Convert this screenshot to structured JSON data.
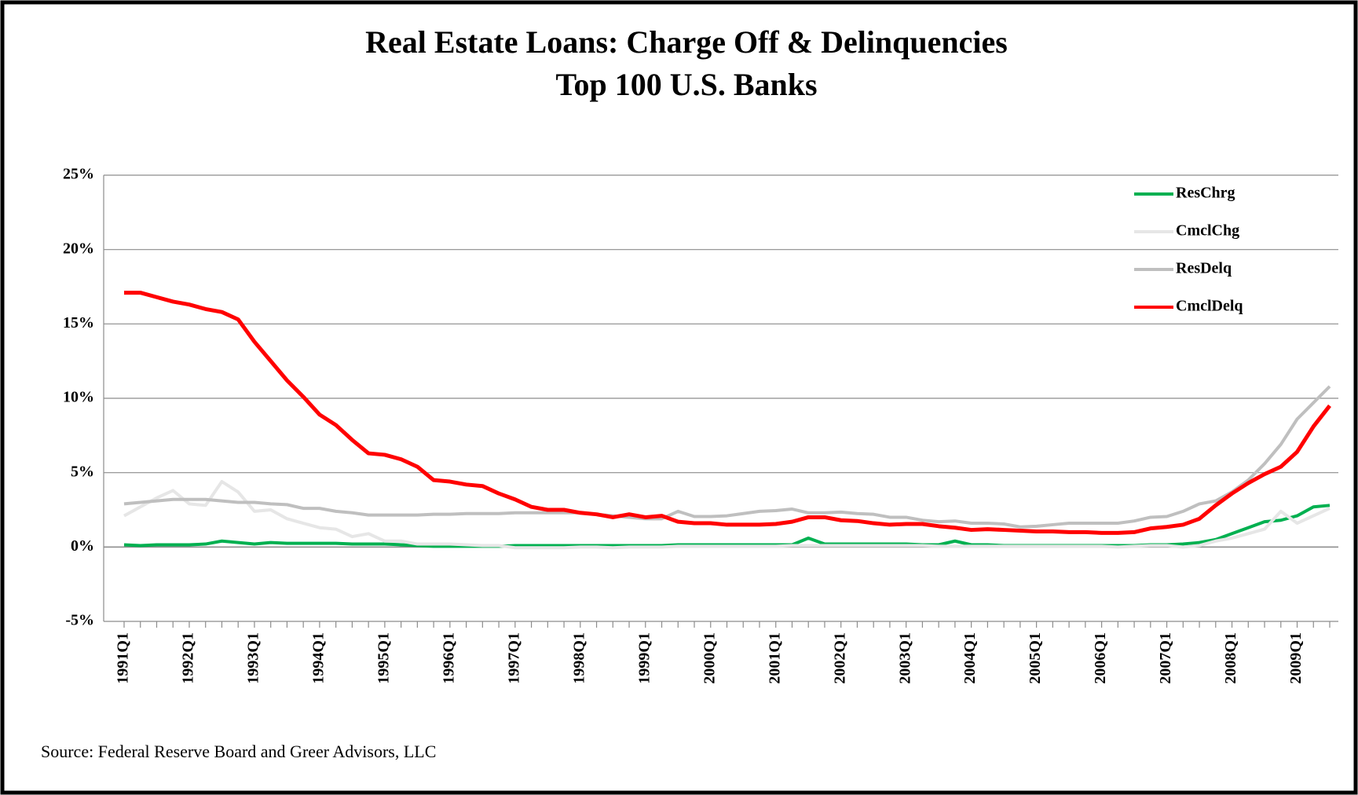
{
  "chart_data": {
    "type": "line",
    "title": "Real Estate Loans: Charge Off & Delinquencies",
    "subtitle": "Top 100 U.S. Banks",
    "source": "Source: Federal Reserve Board and Greer Advisors, LLC",
    "categories": [
      "1991Q1",
      null,
      null,
      null,
      "1992Q1",
      null,
      null,
      null,
      "1993Q1",
      null,
      null,
      null,
      "1994Q1",
      null,
      null,
      null,
      "1995Q1",
      null,
      null,
      null,
      "1996Q1",
      null,
      null,
      null,
      "1997Q1",
      null,
      null,
      null,
      "1998Q1",
      null,
      null,
      null,
      "1999Q1",
      null,
      null,
      null,
      "2000Q1",
      null,
      null,
      null,
      "2001Q1",
      null,
      null,
      null,
      "2002Q1",
      null,
      null,
      null,
      "2003Q1",
      null,
      null,
      null,
      "2004Q1",
      null,
      null,
      null,
      "2005Q1",
      null,
      null,
      null,
      "2006Q1",
      null,
      null,
      null,
      "2007Q1",
      null,
      null,
      null,
      "2008Q1",
      null,
      null,
      null,
      "2009Q1",
      null,
      null
    ],
    "ylim": [
      -5,
      25
    ],
    "yticks": [
      {
        "value": -5,
        "label": "-5%"
      },
      {
        "value": 0,
        "label": "0%"
      },
      {
        "value": 5,
        "label": "5%"
      },
      {
        "value": 10,
        "label": "10%"
      },
      {
        "value": 15,
        "label": "15%"
      },
      {
        "value": 20,
        "label": "20%"
      },
      {
        "value": 25,
        "label": "25%"
      }
    ],
    "grid": true,
    "legend": "upper-right",
    "series": [
      {
        "name": "ResChrg",
        "color": "#00b050",
        "values": [
          0.15,
          0.1,
          0.15,
          0.15,
          0.15,
          0.2,
          0.4,
          0.3,
          0.2,
          0.3,
          0.25,
          0.25,
          0.25,
          0.25,
          0.2,
          0.2,
          0.2,
          0.15,
          0.1,
          0.05,
          0.05,
          0.05,
          0.05,
          0.05,
          0.1,
          0.1,
          0.1,
          0.1,
          0.1,
          0.1,
          0.1,
          0.1,
          0.1,
          0.1,
          0.15,
          0.15,
          0.15,
          0.15,
          0.15,
          0.15,
          0.15,
          0.15,
          0.6,
          0.2,
          0.2,
          0.2,
          0.2,
          0.2,
          0.2,
          0.15,
          0.15,
          0.4,
          0.15,
          0.15,
          0.1,
          0.1,
          0.1,
          0.1,
          0.1,
          0.1,
          0.1,
          0.1,
          0.1,
          0.15,
          0.15,
          0.2,
          0.3,
          0.5,
          0.9,
          1.3,
          1.7,
          1.8,
          2.1,
          2.7,
          2.8
        ]
      },
      {
        "name": "CmclChg",
        "color": "#e6e6e6",
        "values": [
          2.1,
          2.7,
          3.3,
          3.8,
          2.9,
          2.8,
          4.4,
          3.7,
          2.4,
          2.5,
          1.9,
          1.6,
          1.3,
          1.2,
          0.7,
          0.9,
          0.4,
          0.4,
          0.2,
          0.2,
          0.2,
          0.15,
          0.1,
          0.1,
          -0.05,
          -0.05,
          -0.05,
          -0.05,
          0,
          0,
          -0.05,
          0,
          0,
          0,
          0.05,
          0.05,
          0.05,
          0.05,
          0.05,
          0.05,
          0.05,
          0.1,
          0.1,
          0.1,
          0.1,
          0.1,
          0.1,
          0.1,
          0.1,
          0.1,
          0.05,
          0.05,
          0.05,
          0.05,
          0.05,
          0.05,
          0.05,
          0.05,
          0.05,
          0.05,
          0.05,
          0,
          0.05,
          0.1,
          0.1,
          0,
          0.1,
          0.4,
          0.6,
          0.9,
          1.2,
          2.4,
          1.6,
          2.1,
          2.6
        ]
      },
      {
        "name": "ResDelq",
        "color": "#bfbfbf",
        "values": [
          2.9,
          3.0,
          3.1,
          3.2,
          3.2,
          3.2,
          3.1,
          3.0,
          3.0,
          2.9,
          2.85,
          2.6,
          2.6,
          2.4,
          2.3,
          2.15,
          2.15,
          2.15,
          2.15,
          2.2,
          2.2,
          2.25,
          2.25,
          2.25,
          2.3,
          2.3,
          2.3,
          2.3,
          2.3,
          2.2,
          2.1,
          2.0,
          1.9,
          1.9,
          2.4,
          2.05,
          2.05,
          2.1,
          2.25,
          2.4,
          2.45,
          2.55,
          2.3,
          2.3,
          2.35,
          2.25,
          2.2,
          2.0,
          2.0,
          1.8,
          1.7,
          1.75,
          1.6,
          1.6,
          1.55,
          1.35,
          1.4,
          1.5,
          1.6,
          1.6,
          1.6,
          1.6,
          1.75,
          2.0,
          2.05,
          2.4,
          2.9,
          3.1,
          3.7,
          4.5,
          5.6,
          6.9,
          8.6,
          9.7,
          10.8
        ]
      },
      {
        "name": "CmclDelq",
        "color": "#ff0000",
        "values": [
          17.1,
          17.1,
          16.8,
          16.5,
          16.3,
          16.0,
          15.8,
          15.3,
          13.8,
          12.5,
          11.2,
          10.1,
          8.9,
          8.2,
          7.2,
          6.3,
          6.2,
          5.9,
          5.4,
          4.5,
          4.4,
          4.2,
          4.1,
          3.6,
          3.2,
          2.7,
          2.5,
          2.5,
          2.3,
          2.2,
          2.0,
          2.2,
          2.0,
          2.1,
          1.7,
          1.6,
          1.6,
          1.5,
          1.5,
          1.5,
          1.55,
          1.7,
          2.0,
          2.0,
          1.8,
          1.75,
          1.6,
          1.5,
          1.55,
          1.55,
          1.4,
          1.3,
          1.15,
          1.2,
          1.15,
          1.1,
          1.05,
          1.05,
          1.0,
          1.0,
          0.95,
          0.95,
          1.0,
          1.25,
          1.35,
          1.5,
          1.9,
          2.8,
          3.6,
          4.3,
          4.9,
          5.4,
          6.4,
          8.1,
          9.5
        ]
      }
    ]
  }
}
